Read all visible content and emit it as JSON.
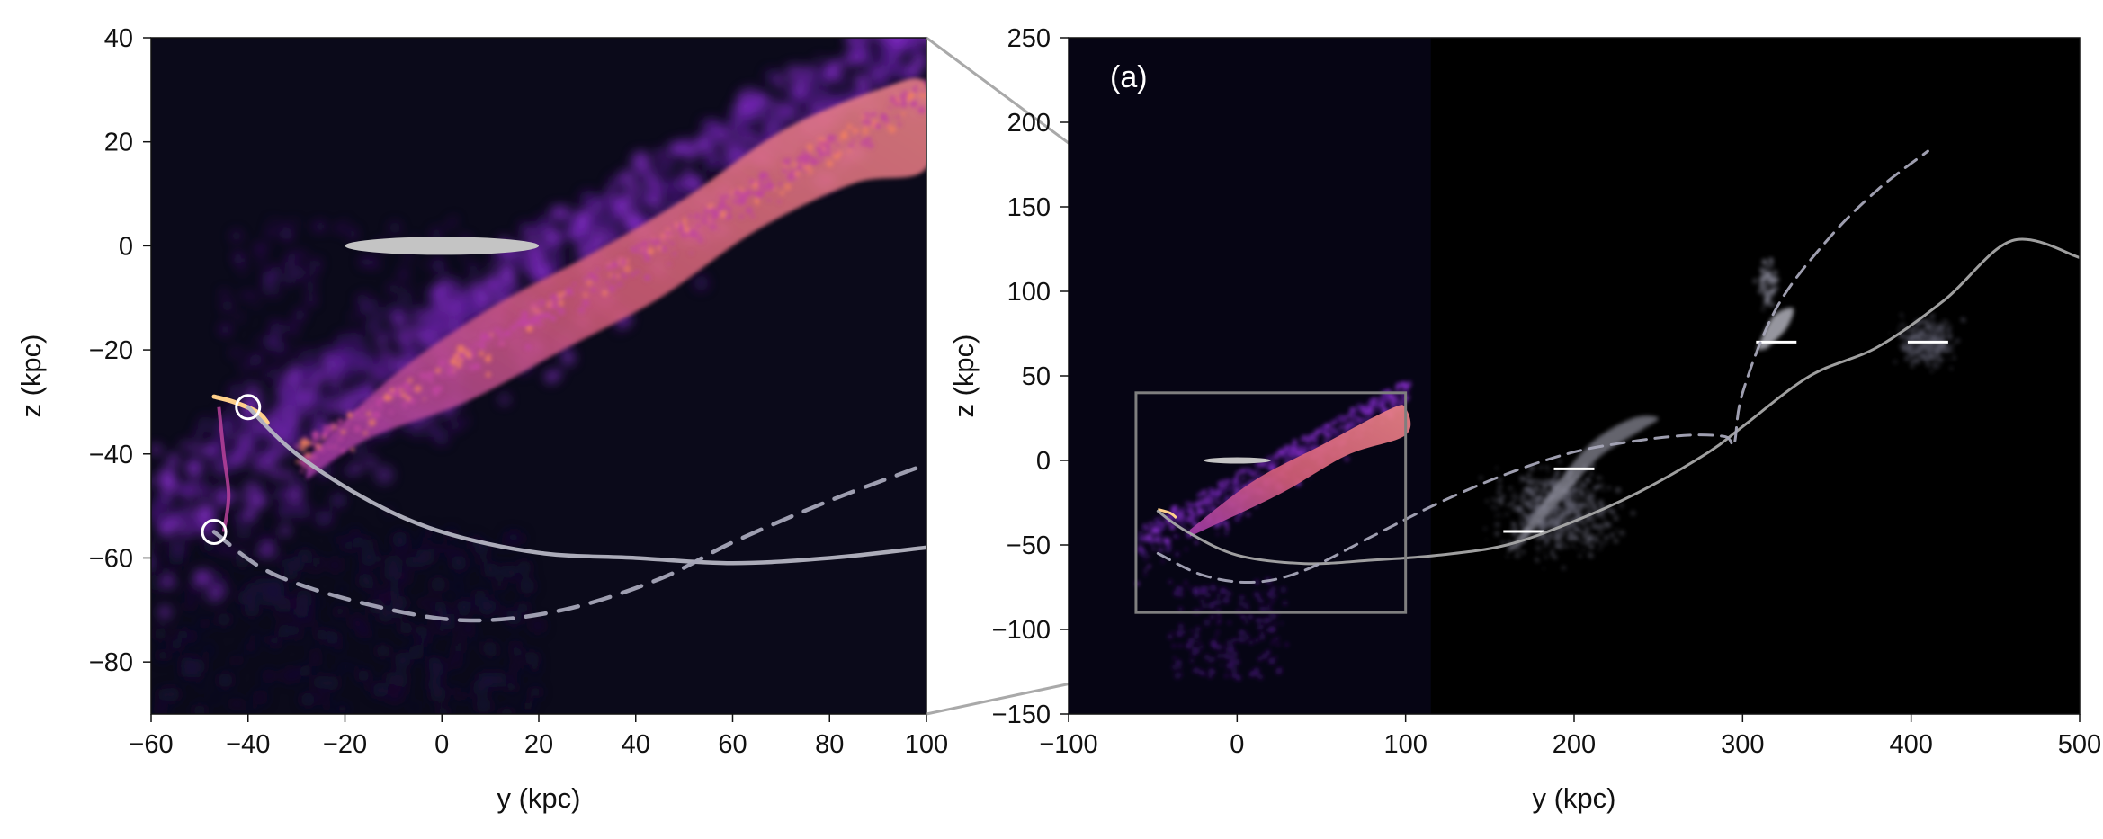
{
  "chart_data": [
    {
      "type": "scatter",
      "panel": "zoomed-left",
      "xlabel": "y (kpc)",
      "ylabel": "z (kpc)",
      "xlim": [
        -60,
        100
      ],
      "ylim": [
        -90,
        40
      ],
      "xticks": [
        -60,
        -40,
        -20,
        0,
        20,
        40,
        60,
        80,
        100
      ],
      "yticks": [
        -80,
        -60,
        -40,
        -20,
        0,
        20,
        40
      ],
      "xtick_labels": [
        "−60",
        "−40",
        "−20",
        "0",
        "20",
        "40",
        "60",
        "80",
        "100"
      ],
      "ytick_labels": [
        "−80",
        "−60",
        "−40",
        "−20",
        "0",
        "20",
        "40"
      ],
      "background_color": "#0b0a1a",
      "colormap": [
        "#1a0b3a",
        "#4a1780",
        "#8a2fd0",
        "#c0459f",
        "#f08060",
        "#ffd08a"
      ],
      "grid": false,
      "disk": {
        "center_y": 0,
        "center_z": 0,
        "radius": 20
      },
      "markers": [
        {
          "y": -40,
          "z": -31,
          "symbol": "circle"
        },
        {
          "y": -47,
          "z": -55,
          "symbol": "circle"
        }
      ],
      "series": [
        {
          "style": "solid",
          "color": "#b5b5c2",
          "points": [
            [
              -40,
              -31
            ],
            [
              -30,
              -40
            ],
            [
              -15,
              -49
            ],
            [
              0,
              -55
            ],
            [
              20,
              -59
            ],
            [
              40,
              -60
            ],
            [
              60,
              -61
            ],
            [
              80,
              -60
            ],
            [
              100,
              -58
            ]
          ]
        },
        {
          "style": "dashed",
          "color": "#a7a7b8",
          "points": [
            [
              -47,
              -55
            ],
            [
              -35,
              -63
            ],
            [
              -15,
              -69
            ],
            [
              5,
              -72
            ],
            [
              25,
              -70
            ],
            [
              45,
              -64
            ],
            [
              60,
              -57
            ],
            [
              80,
              -49
            ],
            [
              100,
              -42
            ]
          ]
        }
      ]
    },
    {
      "type": "scatter",
      "panel": "wide-right",
      "annotation": "(a)",
      "xlabel": "y (kpc)",
      "ylabel": "z (kpc)",
      "xlim": [
        -100,
        500
      ],
      "ylim": [
        -150,
        250
      ],
      "xticks": [
        -100,
        0,
        100,
        200,
        300,
        400,
        500
      ],
      "yticks": [
        -150,
        -100,
        -50,
        0,
        50,
        100,
        150,
        200,
        250
      ],
      "xtick_labels": [
        "−100",
        "0",
        "100",
        "200",
        "300",
        "400",
        "500"
      ],
      "ytick_labels": [
        "−150",
        "−100",
        "−50",
        "0",
        "50",
        "100",
        "150",
        "200",
        "250"
      ],
      "background_color": "#000000",
      "grid": false,
      "inset_box": {
        "xlim": [
          -60,
          100
        ],
        "ylim": [
          -90,
          40
        ]
      },
      "disk": {
        "center_y": 0,
        "center_z": 0,
        "radius": 20
      },
      "satellites": [
        {
          "y": 170,
          "z": -42
        },
        {
          "y": 200,
          "z": -5
        },
        {
          "y": 320,
          "z": 70
        },
        {
          "y": 410,
          "z": 70
        }
      ],
      "series": [
        {
          "style": "solid",
          "color": "#a8a8a8",
          "points": [
            [
              -47,
              -30
            ],
            [
              -30,
              -42
            ],
            [
              0,
              -56
            ],
            [
              40,
              -61
            ],
            [
              80,
              -59
            ],
            [
              120,
              -56
            ],
            [
              160,
              -50
            ],
            [
              200,
              -36
            ],
            [
              240,
              -18
            ],
            [
              280,
              5
            ],
            [
              300,
              20
            ],
            [
              340,
              50
            ],
            [
              380,
              67
            ],
            [
              420,
              95
            ],
            [
              460,
              130
            ],
            [
              500,
              120
            ]
          ]
        },
        {
          "style": "dashed",
          "color": "#a7a7b8",
          "points": [
            [
              -47,
              -55
            ],
            [
              -20,
              -68
            ],
            [
              10,
              -72
            ],
            [
              40,
              -65
            ],
            [
              80,
              -45
            ],
            [
              120,
              -25
            ],
            [
              160,
              -8
            ],
            [
              200,
              5
            ],
            [
              240,
              12
            ],
            [
              270,
              15
            ],
            [
              290,
              14
            ],
            [
              295,
              10
            ],
            [
              300,
              40
            ],
            [
              320,
              90
            ],
            [
              350,
              130
            ],
            [
              380,
              160
            ],
            [
              410,
              183
            ]
          ]
        }
      ]
    }
  ]
}
